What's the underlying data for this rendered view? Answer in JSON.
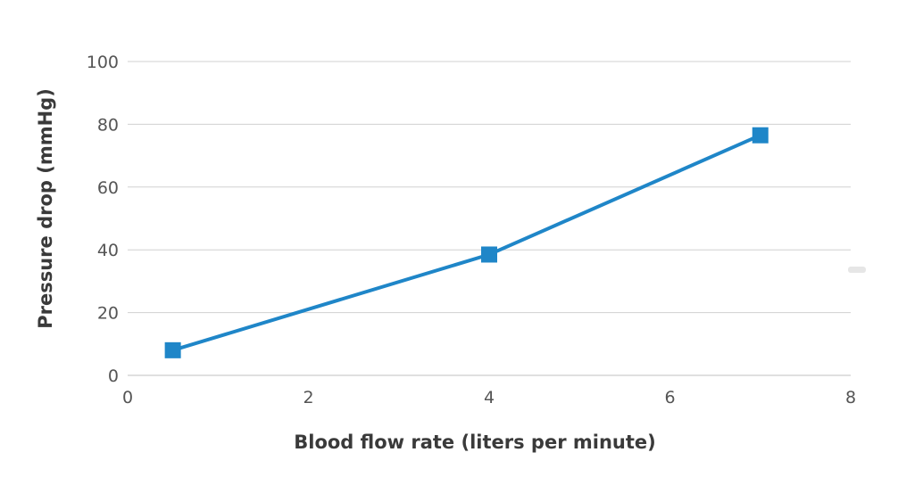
{
  "chart_data": {
    "type": "line",
    "title": "",
    "xlabel": "Blood flow rate (liters per minute)",
    "ylabel": "Pressure drop (mmHg)",
    "xlim": [
      0,
      8
    ],
    "ylim": [
      0,
      100
    ],
    "x_ticks": [
      0,
      2,
      4,
      6,
      8
    ],
    "y_ticks": [
      0,
      20,
      40,
      60,
      80,
      100
    ],
    "grid": "horizontal",
    "legend": "none",
    "series": [
      {
        "color": "#1f86c8",
        "marker": "square",
        "points": [
          {
            "x": 0.5,
            "y": 8
          },
          {
            "x": 4,
            "y": 38.5
          },
          {
            "x": 7,
            "y": 76.5
          }
        ]
      }
    ]
  }
}
